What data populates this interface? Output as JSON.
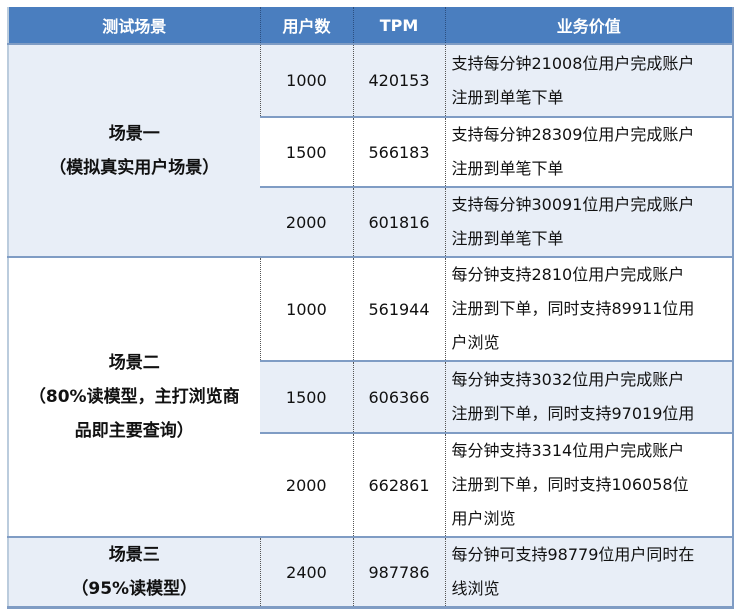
{
  "headers": [
    "测试场景",
    "用户数",
    "TPM",
    "业务价值"
  ],
  "scenarios": [
    {
      "name": "场景一\n（模拟真实用户场景）",
      "rows": [
        {
          "users": "1000",
          "tpm": "420153",
          "value": "支持每分钟21008位用户完成账户\n注册到单笔下单"
        },
        {
          "users": "1500",
          "tpm": "566183",
          "value": "支持每分钟28309位用户完成账户\n注册到单笔下单"
        },
        {
          "users": "2000",
          "tpm": "601816",
          "value": "支持每分钟30091位用户完成账户\n注册到单笔下单"
        }
      ]
    },
    {
      "name": "场景二\n（80%读模型，主打浏览商\n品即主要查询）",
      "rows": [
        {
          "users": "1000",
          "tpm": "561944",
          "value": "每分钟支持2810位用户完成账户\n注册到下单，同时支持89911位用\n户浏览"
        },
        {
          "users": "1500",
          "tpm": "606366",
          "value": "每分钟支持3032位用户完成账户\n注册到下单，同时支持97019位用"
        },
        {
          "users": "2000",
          "tpm": "662861",
          "value": "每分钟支持3314位用户完成账户\n注册到下单，同时支持106058位\n用户浏览"
        }
      ]
    },
    {
      "name": "场景三\n（95%读模型）",
      "rows": [
        {
          "users": "2400",
          "tpm": "987786",
          "value": "每分钟可支持98779位用户同时在\n线浏览"
        }
      ]
    }
  ]
}
